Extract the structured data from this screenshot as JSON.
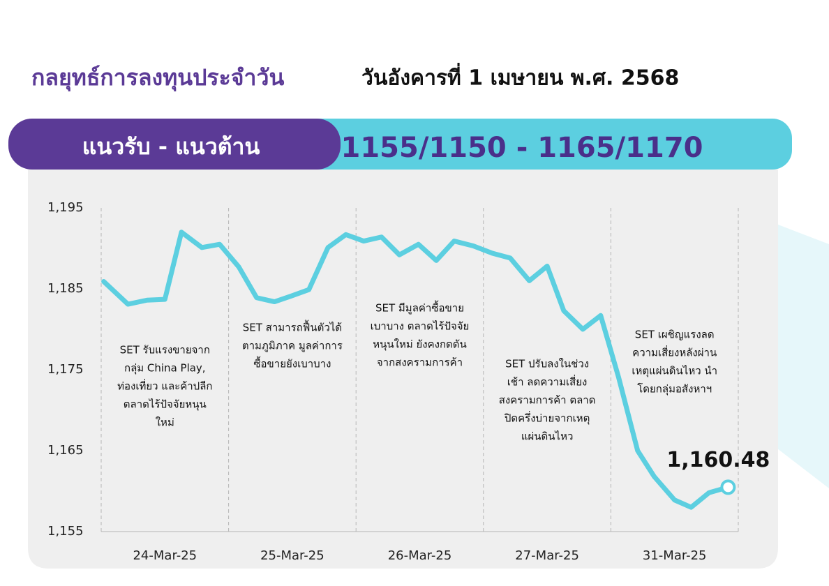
{
  "header": {
    "title": "กลยุทธ์การลงทุนประจำวัน",
    "date": "วันอังคารที่ 1 เมษายน พ.ศ. 2568"
  },
  "band": {
    "label": "แนวรับ - แนวต้าน",
    "range": "1155/1150 - 1165/1170"
  },
  "chart_data": {
    "type": "line",
    "categories": [
      "24-Mar-25",
      "25-Mar-25",
      "26-Mar-25",
      "27-Mar-25",
      "31-Mar-25"
    ],
    "xlim": [
      0,
      5
    ],
    "ylim": [
      1155,
      1195
    ],
    "yticks": [
      {
        "value": 1155,
        "label": "1,155"
      },
      {
        "value": 1165,
        "label": "1,165"
      },
      {
        "value": 1175,
        "label": "1,175"
      },
      {
        "value": 1185,
        "label": "1,185"
      },
      {
        "value": 1195,
        "label": "1,195"
      }
    ],
    "grid": true,
    "series": [
      {
        "color": "#5ccfe0",
        "x": [
          0.02,
          0.21,
          0.36,
          0.5,
          0.63,
          0.79,
          0.93,
          1.08,
          1.22,
          1.36,
          1.49,
          1.63,
          1.78,
          1.92,
          2.06,
          2.2,
          2.34,
          2.49,
          2.63,
          2.77,
          2.92,
          3.07,
          3.21,
          3.36,
          3.5,
          3.63,
          3.78,
          3.92,
          4.06,
          4.21,
          4.34,
          4.5,
          4.63,
          4.77,
          4.92
        ],
        "values": [
          1185.9,
          1183.1,
          1183.6,
          1183.7,
          1192.0,
          1190.1,
          1190.5,
          1187.7,
          1183.9,
          1183.4,
          1184.1,
          1184.9,
          1190.1,
          1191.7,
          1190.9,
          1191.4,
          1189.2,
          1190.5,
          1188.5,
          1190.9,
          1190.3,
          1189.4,
          1188.8,
          1186.0,
          1187.8,
          1182.3,
          1180.0,
          1181.7,
          1174.1,
          1165.0,
          1161.8,
          1158.9,
          1158.0,
          1159.8,
          1160.48
        ],
        "value_labels": [
          null,
          null,
          null,
          null,
          null,
          null,
          null,
          null,
          null,
          null,
          null,
          null,
          null,
          null,
          null,
          null,
          null,
          null,
          null,
          null,
          null,
          null,
          null,
          null,
          null,
          null,
          null,
          null,
          null,
          null,
          null,
          null,
          null,
          null,
          "1,160.48"
        ]
      }
    ],
    "annotations": [
      {
        "lines": [
          "SET รับแรงขายจาก",
          "กลุ่ม China Play,",
          "ท่องเที่ยว และค้าปลีก",
          "ตลาดไร้ปัจจัยหนุน",
          "ใหม่"
        ]
      },
      {
        "lines": [
          "SET สามารถฟื้นตัวได้",
          "ตามภูมิภาค มูลค่าการ",
          "ซื้อขายยังเบาบาง"
        ]
      },
      {
        "lines": [
          "SET มีมูลค่าซื้อขาย",
          "เบาบาง ตลาดไร้ปัจจัย",
          "หนุนใหม่ ยังคงกดดัน",
          "จากสงครามการค้า"
        ]
      },
      {
        "lines": [
          "SET ปรับลงในช่วง",
          "เช้า ลดความเสี่ยง",
          "สงครามการค้า ตลาด",
          "ปิดครึ่งบ่ายจากเหตุ",
          "แผ่นดินไหว"
        ]
      },
      {
        "lines": [
          "SET เผชิญแรงลด",
          "ความเสี่ยงหลังผ่าน",
          "เหตุแผ่นดินไหว นำ",
          "โดยกลุ่มอสังหาฯ"
        ]
      }
    ]
  }
}
